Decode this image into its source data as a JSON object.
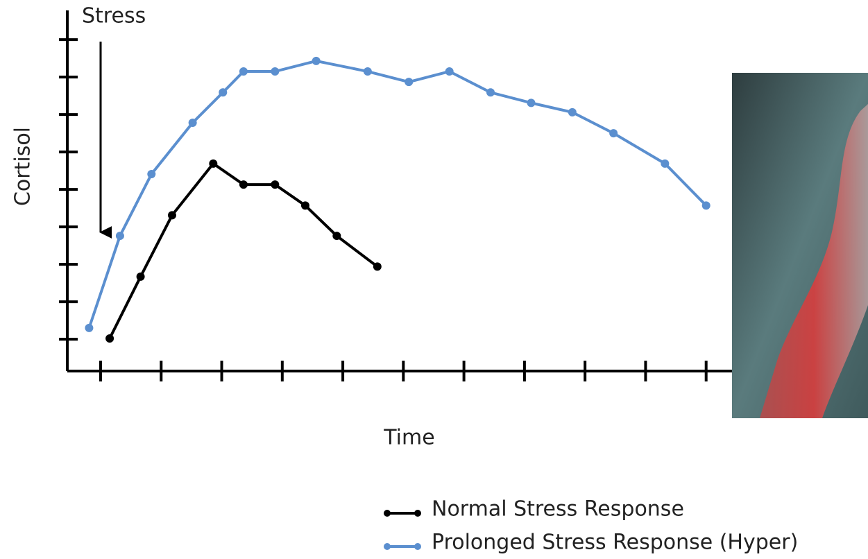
{
  "chart_data": {
    "type": "line",
    "annotation": "Stress",
    "x_label": "Time",
    "y_label": "Cortisol",
    "xlim": [
      0.45,
      11.37
    ],
    "ylim": [
      0.15,
      9.78
    ],
    "xticks": [
      1,
      2,
      3,
      4,
      5,
      6,
      7,
      8,
      9,
      10,
      11
    ],
    "yticks": [
      1,
      2,
      3,
      4,
      5,
      6,
      7,
      8,
      9
    ],
    "series": [
      {
        "name": "Normal Stress Response",
        "color": "#000000",
        "x": [
          1.15,
          1.66,
          2.18,
          2.86,
          3.36,
          3.88,
          4.38,
          4.9,
          5.57
        ],
        "values": [
          1.02,
          2.67,
          4.31,
          5.69,
          5.13,
          5.13,
          4.57,
          3.76,
          2.94
        ]
      },
      {
        "name": "Prolonged Stress Response (Hyper)",
        "color": "#5b8fcf",
        "x": [
          0.81,
          1.32,
          1.84,
          2.52,
          3.02,
          3.36,
          3.88,
          4.56,
          5.41,
          6.09,
          6.76,
          7.44,
          8.11,
          8.79,
          9.47,
          10.32,
          11.0
        ],
        "values": [
          1.3,
          3.76,
          5.41,
          6.78,
          7.59,
          8.15,
          8.15,
          8.43,
          8.15,
          7.87,
          8.15,
          7.59,
          7.31,
          7.06,
          6.5,
          5.69,
          4.57
        ]
      }
    ]
  }
}
